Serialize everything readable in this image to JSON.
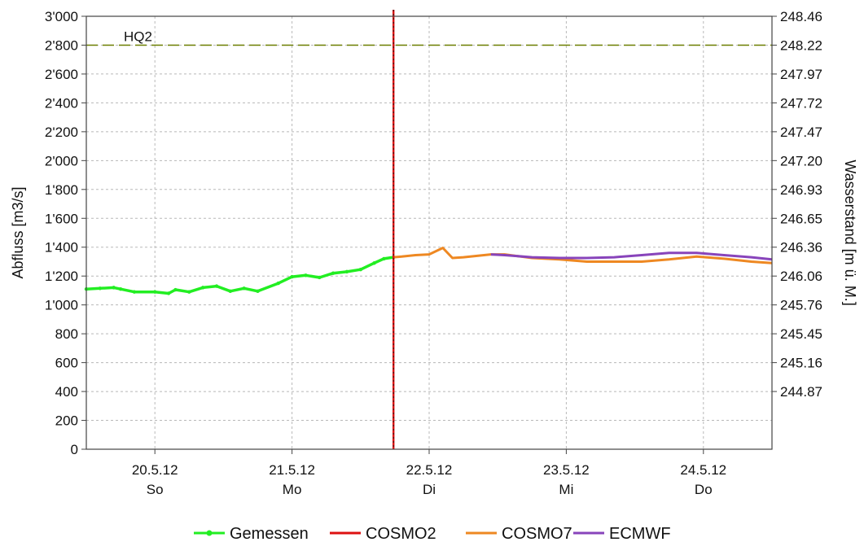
{
  "chart_data": {
    "type": "line",
    "ylabel": "Abfluss [m3/s]",
    "y2label": "Wasserstand [m ü. M.]",
    "ylim": [
      0,
      3000
    ],
    "yticks": [
      0,
      200,
      400,
      600,
      800,
      1000,
      1200,
      1400,
      1600,
      1800,
      2000,
      2200,
      2400,
      2600,
      2800,
      3000
    ],
    "ytick_labels": [
      "0",
      "200",
      "400",
      "600",
      "800",
      "1'000",
      "1'200",
      "1'400",
      "1'600",
      "1'800",
      "2'000",
      "2'200",
      "2'400",
      "2'600",
      "2'800",
      "3'000"
    ],
    "y2tick_labels": [
      "248.46",
      "248.22",
      "247.97",
      "247.72",
      "247.47",
      "247.20",
      "246.93",
      "246.65",
      "246.36",
      "246.06",
      "245.76",
      "245.45",
      "245.16",
      "244.87"
    ],
    "xlim": [
      19.95,
      24.95
    ],
    "x_day_boundaries": [
      20.45,
      21.45,
      22.45,
      23.45,
      24.45
    ],
    "xticks": [
      {
        "x": 20.45,
        "date": "20.5.12",
        "day": "So"
      },
      {
        "x": 21.45,
        "date": "21.5.12",
        "day": "Mo"
      },
      {
        "x": 22.45,
        "date": "22.5.12",
        "day": "Di"
      },
      {
        "x": 23.45,
        "date": "23.5.12",
        "day": "Mi"
      },
      {
        "x": 24.45,
        "date": "24.5.12",
        "day": "Do"
      }
    ],
    "grid": true,
    "now_marker_x": 22.19,
    "hq_line": {
      "label": "HQ2",
      "y": 2800,
      "color": "#6b7f00"
    },
    "legend_position": "bottom-center",
    "series": [
      {
        "name": "Gemessen",
        "color": "#22ee22",
        "x": [
          19.95,
          20.05,
          20.15,
          20.2,
          20.3,
          20.45,
          20.55,
          20.6,
          20.7,
          20.8,
          20.9,
          21.0,
          21.1,
          21.2,
          21.35,
          21.45,
          21.55,
          21.65,
          21.75,
          21.85,
          21.95,
          22.05,
          22.12,
          22.19
        ],
        "values": [
          1110,
          1115,
          1120,
          1110,
          1090,
          1090,
          1080,
          1105,
          1090,
          1120,
          1130,
          1095,
          1115,
          1095,
          1150,
          1195,
          1205,
          1190,
          1220,
          1230,
          1245,
          1290,
          1320,
          1330
        ]
      },
      {
        "name": "COSMO2",
        "color": "#dd1111",
        "x": [
          22.19
        ],
        "values": [
          1330
        ]
      },
      {
        "name": "COSMO7",
        "color": "#ee8822",
        "x": [
          22.19,
          22.25,
          22.35,
          22.45,
          22.55,
          22.62,
          22.7,
          22.8,
          22.9,
          23.0,
          23.2,
          23.4,
          23.6,
          23.8,
          24.0,
          24.2,
          24.4,
          24.6,
          24.8,
          24.95
        ],
        "values": [
          1330,
          1335,
          1345,
          1350,
          1395,
          1325,
          1330,
          1340,
          1350,
          1350,
          1325,
          1315,
          1300,
          1300,
          1300,
          1315,
          1335,
          1320,
          1300,
          1290
        ]
      },
      {
        "name": "ECMWF",
        "color": "#8844bb",
        "x": [
          22.9,
          23.0,
          23.2,
          23.4,
          23.6,
          23.8,
          24.0,
          24.2,
          24.4,
          24.6,
          24.8,
          24.95
        ],
        "values": [
          1350,
          1345,
          1330,
          1325,
          1325,
          1330,
          1345,
          1360,
          1360,
          1345,
          1330,
          1315
        ]
      }
    ]
  }
}
